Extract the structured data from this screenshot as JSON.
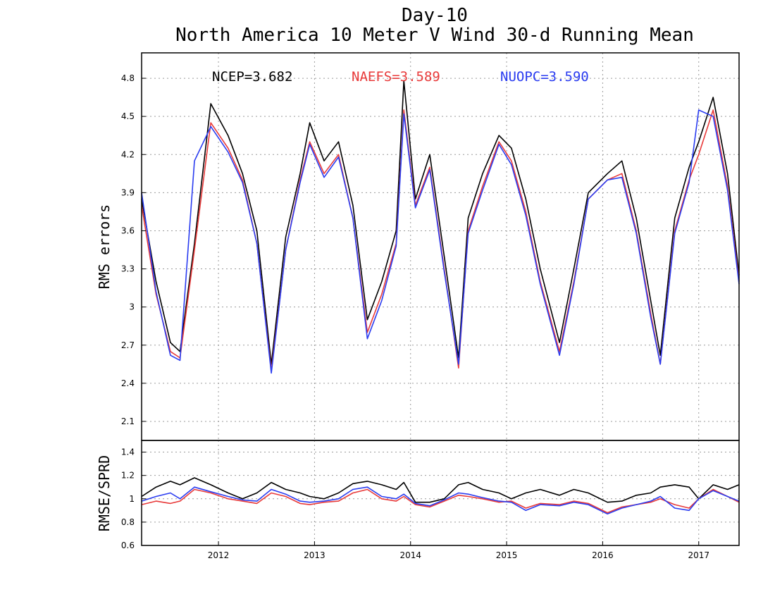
{
  "title": "Day-10",
  "subtitle": "North America 10 Meter V Wind 30-d Running Mean",
  "legend": [
    {
      "label": "NCEP=3.682",
      "color": "#000000"
    },
    {
      "label": "NAEFS=3.589",
      "color": "#e83a3a"
    },
    {
      "label": "NUOPC=3.590",
      "color": "#2a3cf0"
    }
  ],
  "chart_data": [
    {
      "type": "line",
      "ylabel": "RMS errors",
      "xlim": [
        2011.2,
        2017.42
      ],
      "ylim": [
        1.95,
        5.0
      ],
      "yticks": [
        2.1,
        2.4,
        2.7,
        3,
        3.3,
        3.6,
        3.9,
        4.2,
        4.5,
        4.8
      ],
      "yticklabels": [
        "2.1",
        "2.4",
        "2.7",
        "3",
        "3.3",
        "3.6",
        "3.9",
        "4.2",
        "4.5",
        "4.8"
      ],
      "grid": true,
      "legend_position": "top",
      "x": [
        2011.2,
        2011.35,
        2011.5,
        2011.6,
        2011.75,
        2011.92,
        2012.1,
        2012.25,
        2012.4,
        2012.55,
        2012.7,
        2012.85,
        2012.95,
        2013.1,
        2013.25,
        2013.4,
        2013.55,
        2013.7,
        2013.85,
        2013.93,
        2014.05,
        2014.2,
        2014.35,
        2014.5,
        2014.6,
        2014.75,
        2014.92,
        2015.05,
        2015.2,
        2015.35,
        2015.55,
        2015.7,
        2015.85,
        2016.05,
        2016.2,
        2016.35,
        2016.5,
        2016.6,
        2016.75,
        2016.9,
        2017.0,
        2017.15,
        2017.3,
        2017.42
      ],
      "series": [
        {
          "name": "NCEP",
          "color": "#000000",
          "values": [
            3.85,
            3.2,
            2.72,
            2.65,
            3.5,
            4.6,
            4.35,
            4.05,
            3.6,
            2.55,
            3.55,
            4.05,
            4.45,
            4.15,
            4.3,
            3.8,
            2.9,
            3.2,
            3.6,
            4.78,
            3.85,
            4.2,
            3.4,
            2.6,
            3.7,
            4.05,
            4.35,
            4.25,
            3.85,
            3.3,
            2.72,
            3.3,
            3.9,
            4.05,
            4.15,
            3.7,
            3.05,
            2.62,
            3.7,
            4.1,
            4.3,
            4.65,
            4.05,
            3.25
          ]
        },
        {
          "name": "NAEFS",
          "color": "#e83a3a",
          "values": [
            3.8,
            3.1,
            2.65,
            2.6,
            3.45,
            4.45,
            4.25,
            4.0,
            3.5,
            2.5,
            3.45,
            4.0,
            4.3,
            4.05,
            4.2,
            3.7,
            2.8,
            3.1,
            3.5,
            4.55,
            3.8,
            4.1,
            3.3,
            2.52,
            3.6,
            3.95,
            4.3,
            4.15,
            3.75,
            3.2,
            2.65,
            3.2,
            3.85,
            4.0,
            4.05,
            3.6,
            2.95,
            2.55,
            3.6,
            4.0,
            4.2,
            4.55,
            3.95,
            3.2
          ]
        },
        {
          "name": "NUOPC",
          "color": "#2a3cf0",
          "values": [
            3.9,
            3.12,
            2.62,
            2.58,
            4.15,
            4.42,
            4.22,
            3.98,
            3.5,
            2.48,
            3.45,
            3.98,
            4.28,
            4.02,
            4.18,
            3.7,
            2.75,
            3.05,
            3.48,
            4.52,
            3.78,
            4.08,
            3.28,
            2.55,
            3.58,
            3.92,
            4.28,
            4.12,
            3.72,
            3.18,
            2.62,
            3.18,
            3.85,
            4.0,
            4.02,
            3.58,
            2.92,
            2.55,
            3.58,
            3.98,
            4.55,
            4.5,
            3.92,
            3.18
          ]
        }
      ]
    },
    {
      "type": "line",
      "ylabel": "RMSE/SPRD",
      "xlim": [
        2011.2,
        2017.42
      ],
      "ylim": [
        0.6,
        1.5
      ],
      "yticks": [
        0.6,
        0.8,
        1,
        1.2,
        1.4
      ],
      "yticklabels": [
        "0.6",
        "0.8",
        "1",
        "1.2",
        "1.4"
      ],
      "xticks": [
        2012,
        2013,
        2014,
        2015,
        2016,
        2017
      ],
      "xticklabels": [
        "2012",
        "2013",
        "2014",
        "2015",
        "2016",
        "2017"
      ],
      "grid": true,
      "x": [
        2011.2,
        2011.35,
        2011.5,
        2011.6,
        2011.75,
        2011.92,
        2012.1,
        2012.25,
        2012.4,
        2012.55,
        2012.7,
        2012.85,
        2012.95,
        2013.1,
        2013.25,
        2013.4,
        2013.55,
        2013.7,
        2013.85,
        2013.93,
        2014.05,
        2014.2,
        2014.35,
        2014.5,
        2014.6,
        2014.75,
        2014.92,
        2015.05,
        2015.2,
        2015.35,
        2015.55,
        2015.7,
        2015.85,
        2016.05,
        2016.2,
        2016.35,
        2016.5,
        2016.6,
        2016.75,
        2016.9,
        2017.0,
        2017.15,
        2017.3,
        2017.42
      ],
      "series": [
        {
          "name": "NCEP",
          "color": "#000000",
          "values": [
            1.02,
            1.1,
            1.15,
            1.12,
            1.18,
            1.12,
            1.05,
            1.0,
            1.05,
            1.14,
            1.08,
            1.05,
            1.02,
            1.0,
            1.05,
            1.13,
            1.15,
            1.12,
            1.08,
            1.14,
            0.97,
            0.97,
            1.0,
            1.12,
            1.14,
            1.08,
            1.05,
            1.0,
            1.05,
            1.08,
            1.03,
            1.08,
            1.05,
            0.97,
            0.98,
            1.03,
            1.05,
            1.1,
            1.12,
            1.1,
            1.0,
            1.12,
            1.08,
            1.12
          ]
        },
        {
          "name": "NAEFS",
          "color": "#e83a3a",
          "values": [
            0.95,
            0.98,
            0.96,
            0.98,
            1.08,
            1.05,
            1.0,
            0.98,
            0.96,
            1.05,
            1.02,
            0.96,
            0.95,
            0.97,
            0.98,
            1.05,
            1.08,
            1.0,
            0.98,
            1.02,
            0.95,
            0.93,
            0.98,
            1.03,
            1.02,
            1.0,
            0.97,
            0.98,
            0.92,
            0.96,
            0.95,
            0.98,
            0.96,
            0.88,
            0.93,
            0.95,
            0.97,
            1.0,
            0.95,
            0.92,
            1.0,
            1.08,
            1.02,
            0.97
          ]
        },
        {
          "name": "NUOPC",
          "color": "#2a3cf0",
          "values": [
            0.98,
            1.02,
            1.05,
            1.0,
            1.1,
            1.06,
            1.02,
            0.99,
            0.98,
            1.08,
            1.04,
            0.98,
            0.97,
            0.98,
            1.0,
            1.08,
            1.1,
            1.02,
            1.0,
            1.04,
            0.96,
            0.94,
            0.99,
            1.05,
            1.04,
            1.01,
            0.98,
            0.97,
            0.9,
            0.95,
            0.94,
            0.97,
            0.95,
            0.87,
            0.92,
            0.95,
            0.98,
            1.02,
            0.92,
            0.9,
            1.0,
            1.07,
            1.02,
            0.98
          ]
        }
      ]
    }
  ]
}
